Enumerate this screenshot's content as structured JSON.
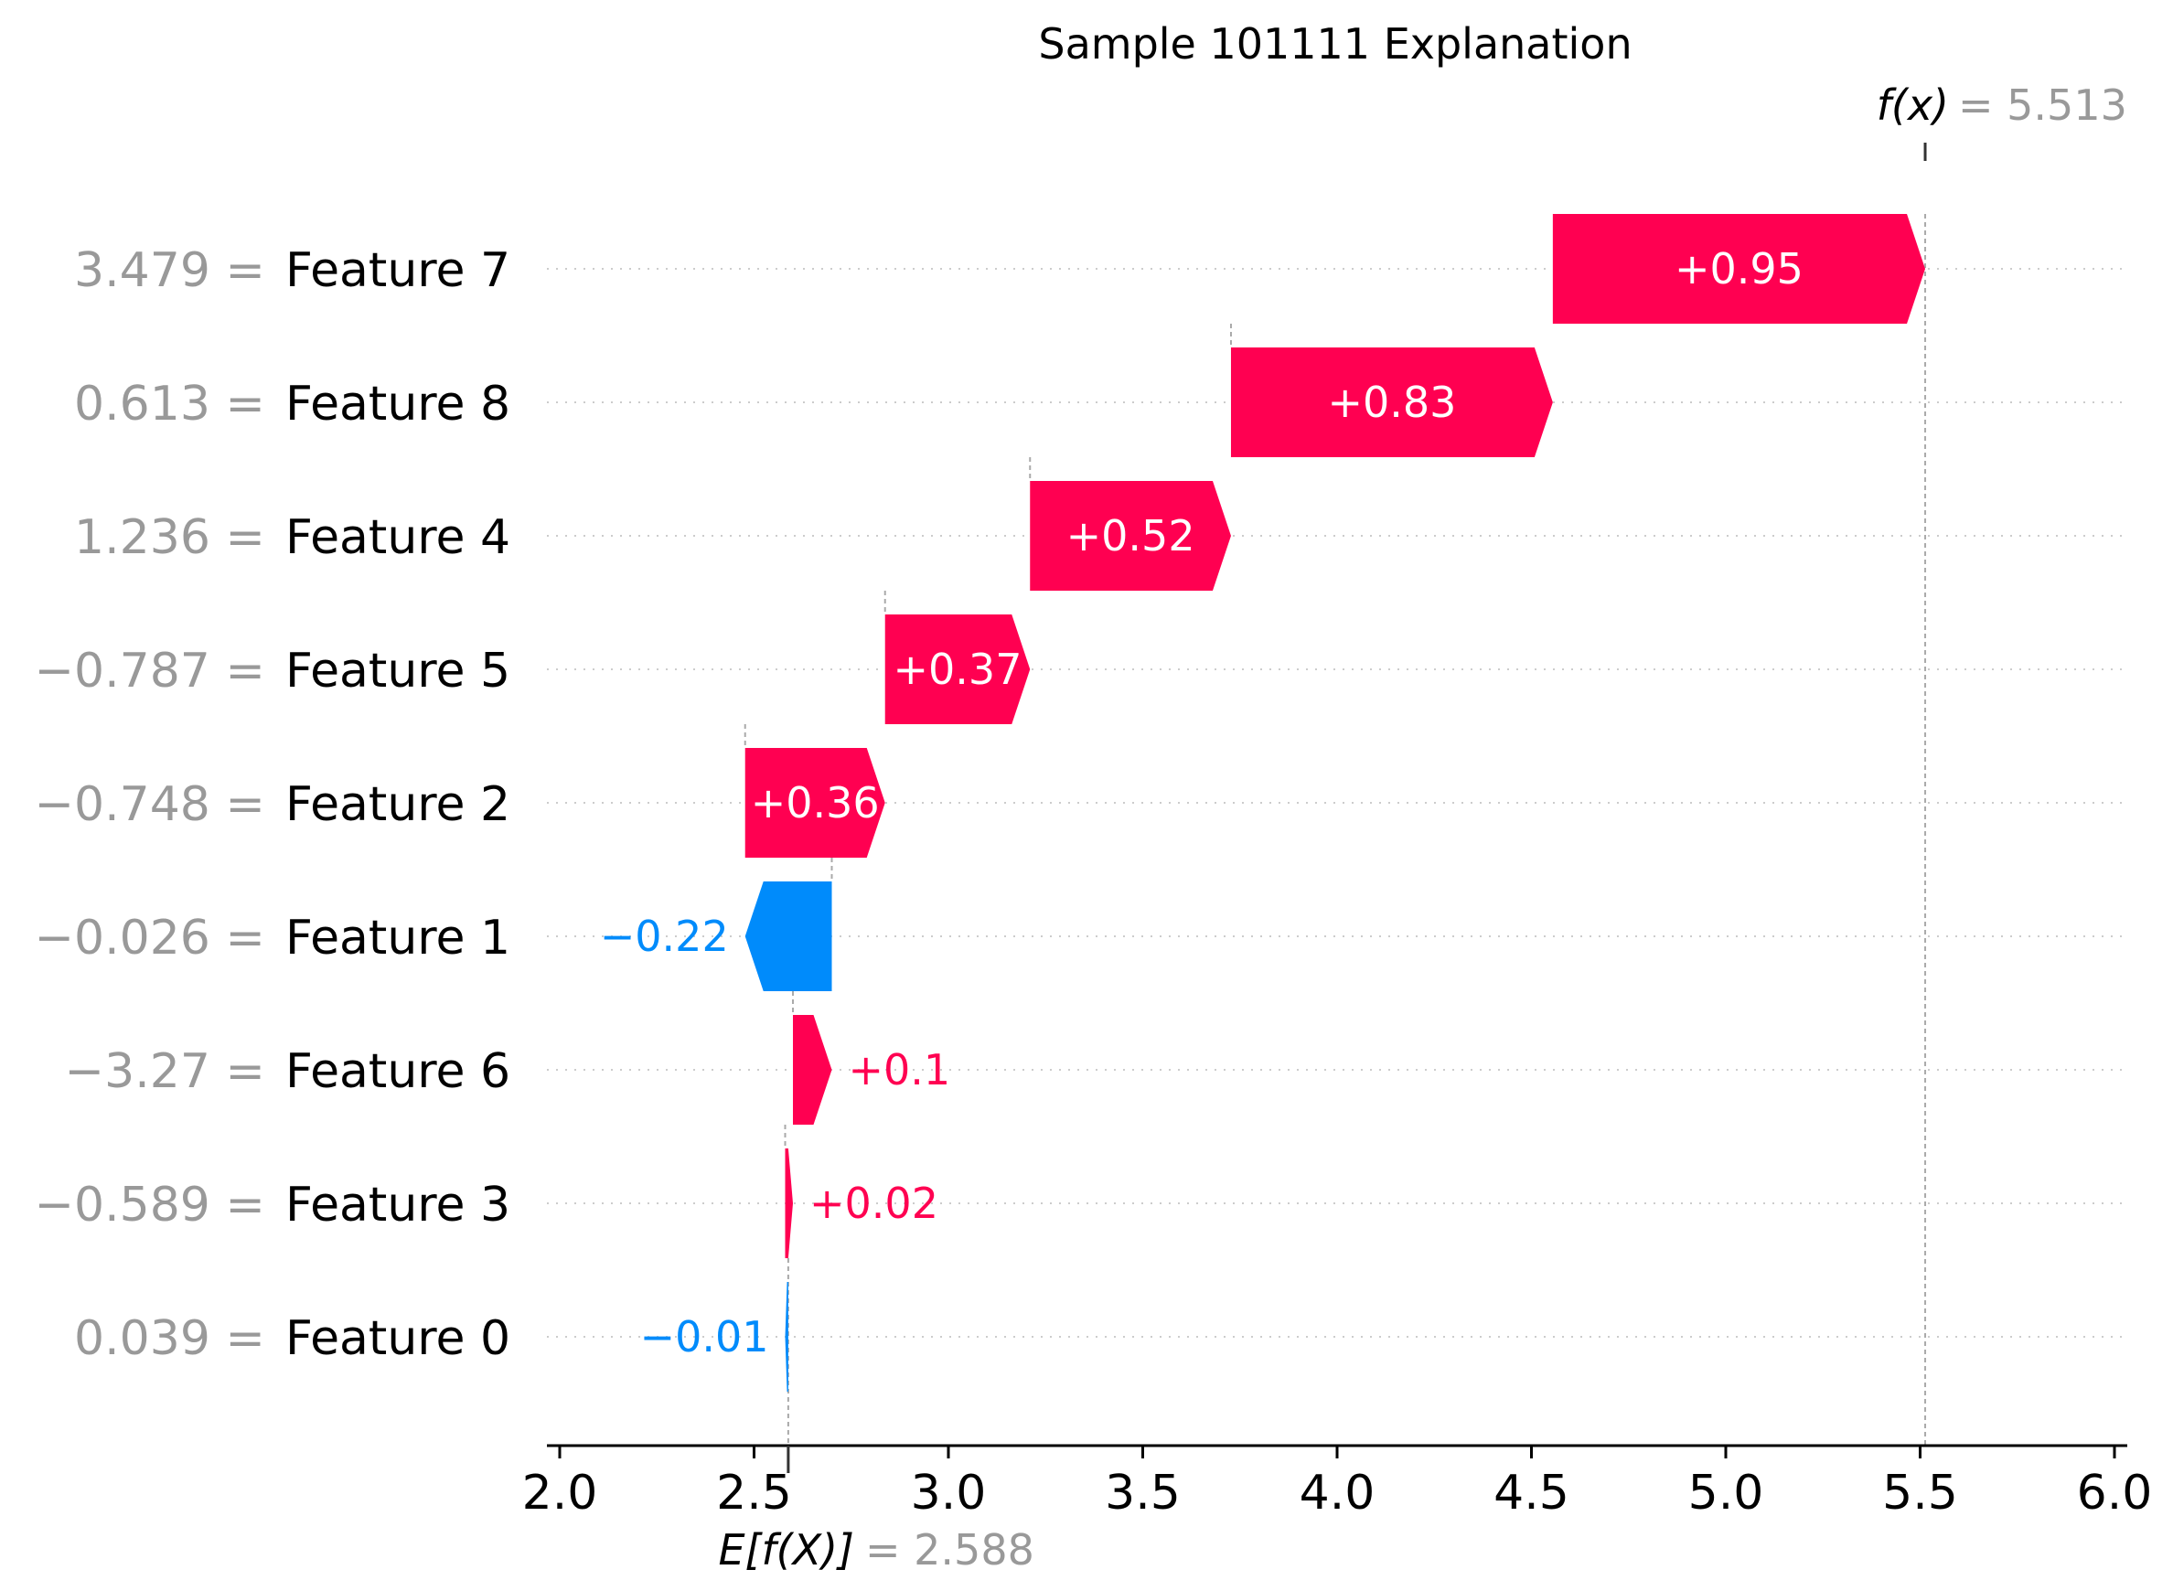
{
  "chart_data": {
    "type": "waterfall",
    "title": "Sample 101111 Explanation",
    "base_value": 2.588,
    "base_label_text": "E[f(X)]",
    "base_value_text": "= 2.588",
    "final_value": 5.513,
    "final_label_text": "f(x)",
    "final_value_text": "= 5.513",
    "xlim": [
      2.0,
      6.0
    ],
    "ticks": [
      {
        "value": 2.0,
        "label": "2.0"
      },
      {
        "value": 2.5,
        "label": "2.5"
      },
      {
        "value": 3.0,
        "label": "3.0"
      },
      {
        "value": 3.5,
        "label": "3.5"
      },
      {
        "value": 4.0,
        "label": "4.0"
      },
      {
        "value": 4.5,
        "label": "4.5"
      },
      {
        "value": 5.0,
        "label": "5.0"
      },
      {
        "value": 5.5,
        "label": "5.5"
      },
      {
        "value": 6.0,
        "label": "6.0"
      }
    ],
    "grid": "horizontal dotted",
    "colors": {
      "positive": "#ff0051",
      "negative": "#008bfb",
      "muted": "#999999"
    },
    "rows": [
      {
        "feature": "Feature 7",
        "feature_value": "3.479 =",
        "start": 4.555,
        "end": 5.513,
        "contribution": 0.95,
        "label": "+0.95"
      },
      {
        "feature": "Feature 8",
        "feature_value": "0.613 =",
        "start": 3.727,
        "end": 4.555,
        "contribution": 0.83,
        "label": "+0.83"
      },
      {
        "feature": "Feature 4",
        "feature_value": "1.236 =",
        "start": 3.21,
        "end": 3.727,
        "contribution": 0.52,
        "label": "+0.52"
      },
      {
        "feature": "Feature 5",
        "feature_value": "−0.787 =",
        "start": 2.837,
        "end": 3.21,
        "contribution": 0.37,
        "label": "+0.37"
      },
      {
        "feature": "Feature 2",
        "feature_value": "−0.748 =",
        "start": 2.477,
        "end": 2.837,
        "contribution": 0.36,
        "label": "+0.36"
      },
      {
        "feature": "Feature 1",
        "feature_value": "−0.026 =",
        "start": 2.7,
        "end": 2.477,
        "contribution": -0.22,
        "label": "−0.22"
      },
      {
        "feature": "Feature 6",
        "feature_value": "−3.27 =",
        "start": 2.6,
        "end": 2.7,
        "contribution": 0.1,
        "label": "+0.1"
      },
      {
        "feature": "Feature 3",
        "feature_value": "−0.589 =",
        "start": 2.58,
        "end": 2.6,
        "contribution": 0.02,
        "label": "+0.02"
      },
      {
        "feature": "Feature 0",
        "feature_value": "0.039 =",
        "start": 2.588,
        "end": 2.58,
        "contribution": -0.01,
        "label": "−0.01"
      }
    ]
  }
}
